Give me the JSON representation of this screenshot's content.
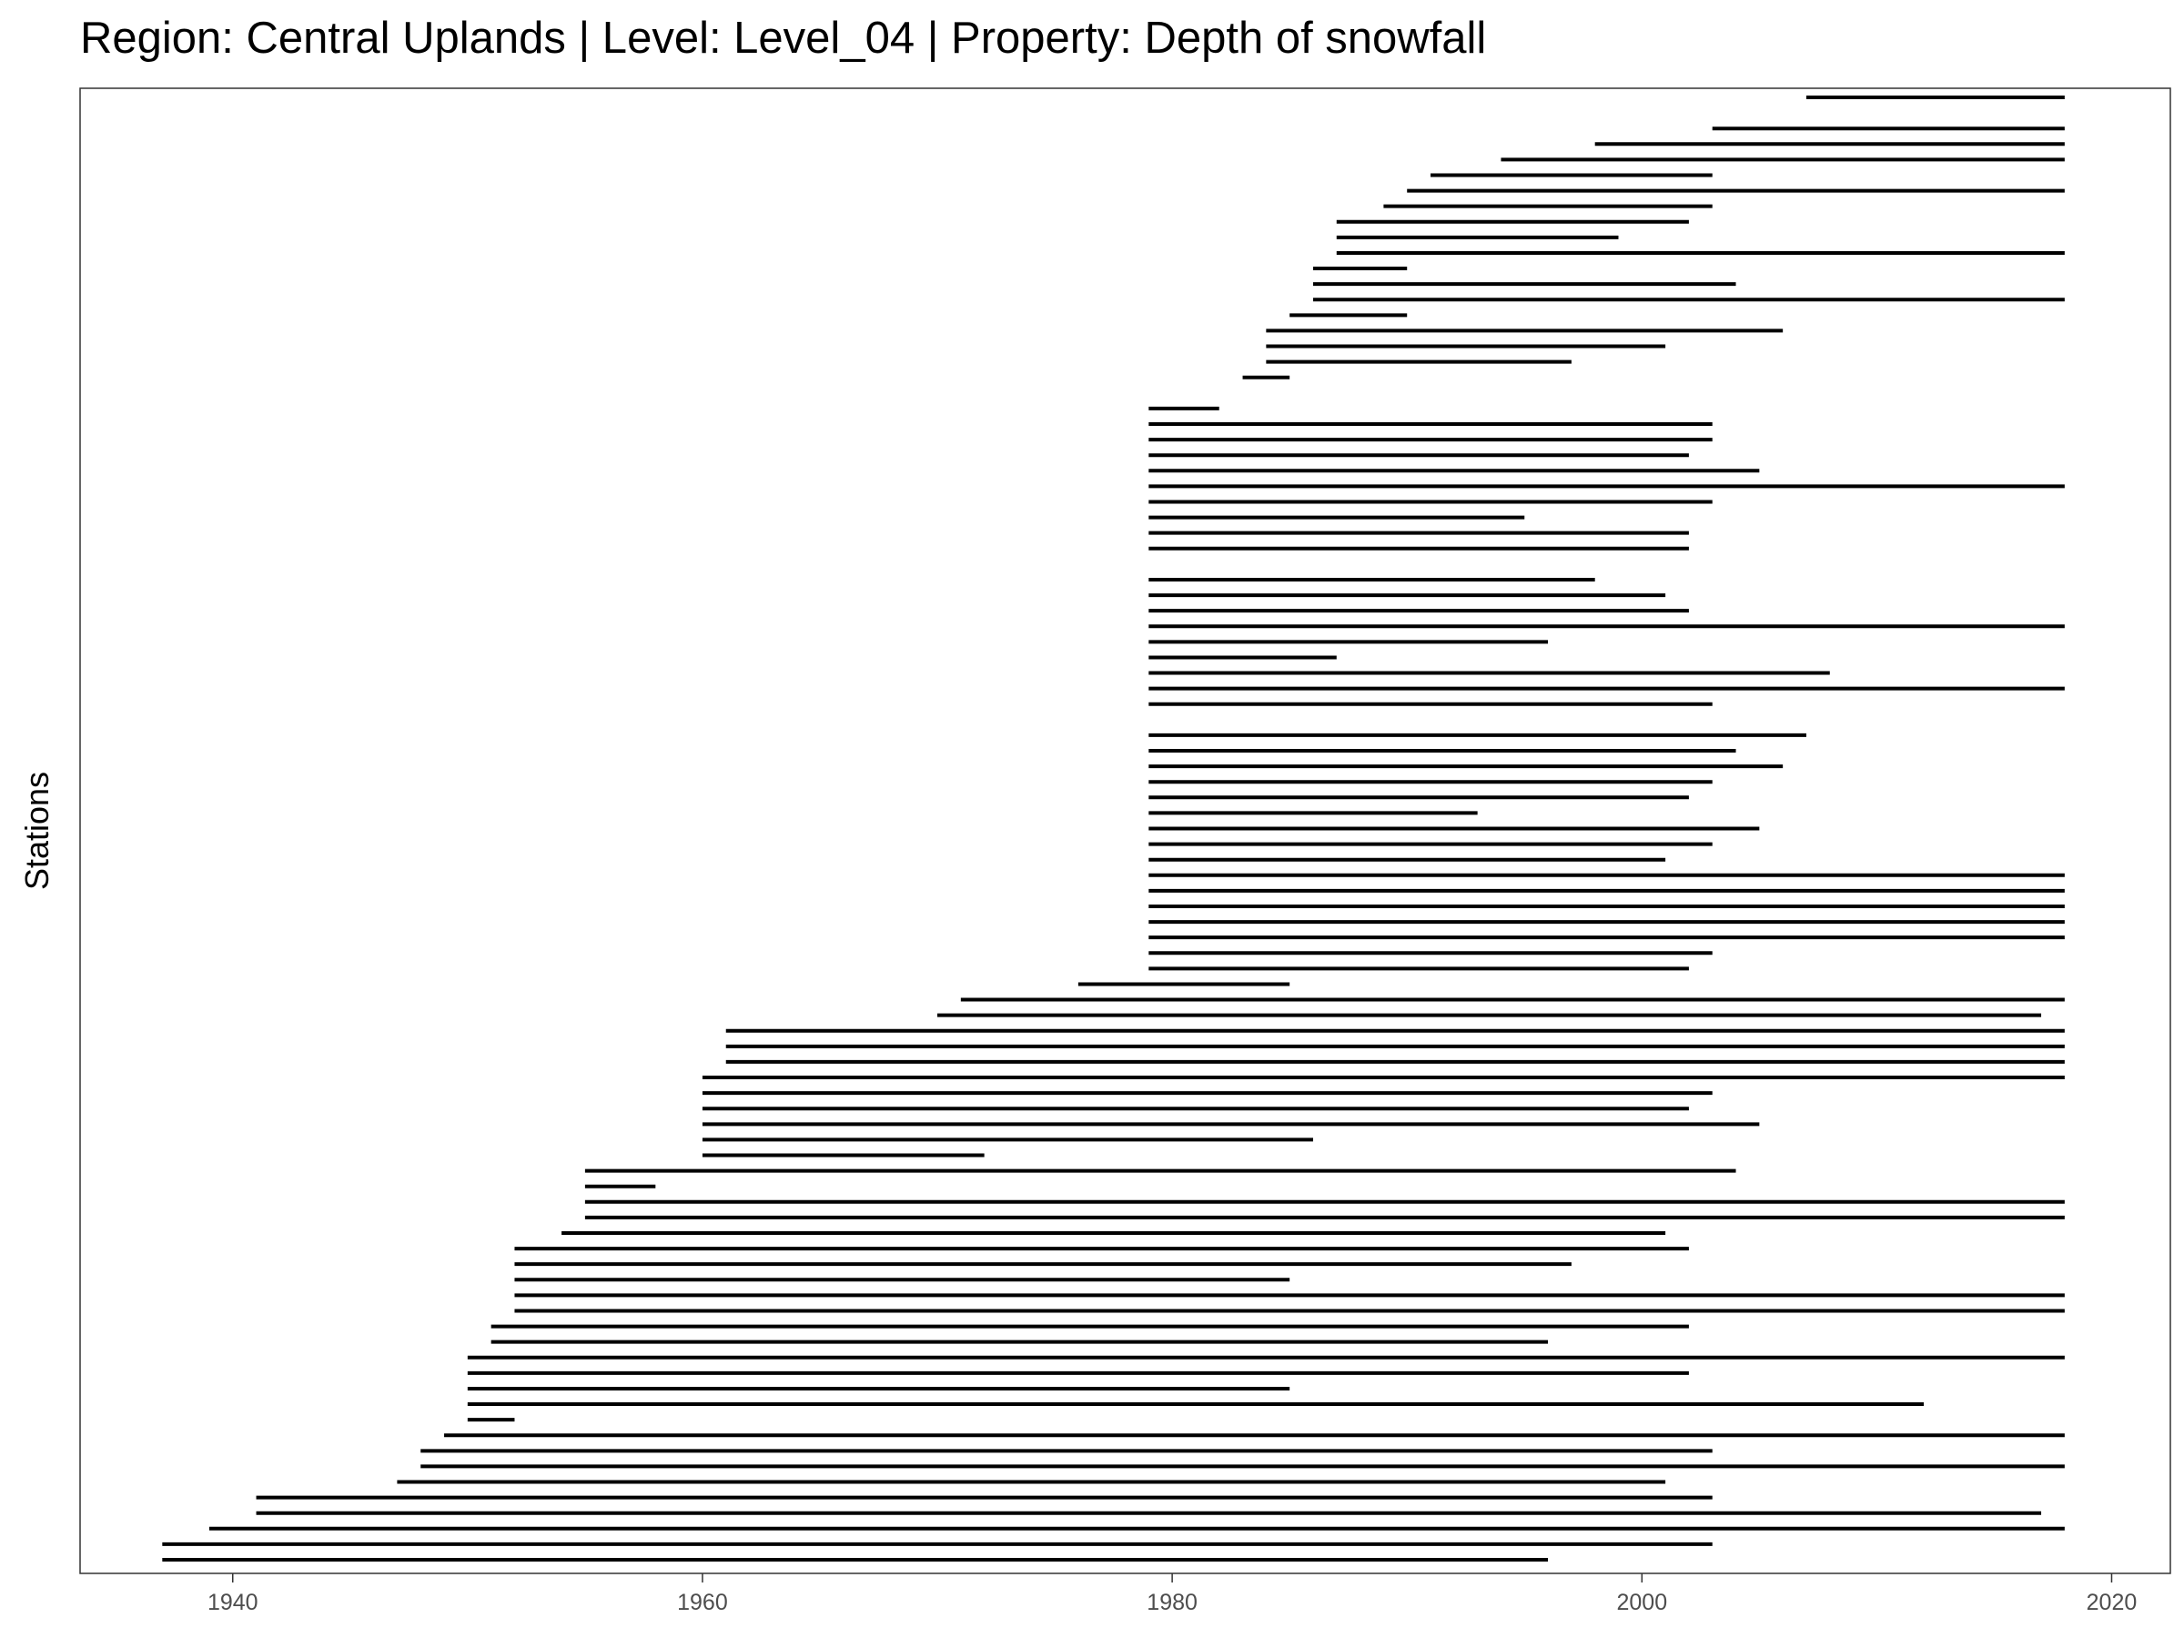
{
  "chart_data": {
    "type": "segments",
    "title": "Region: Central Uplands | Level: Level_04 | Property: Depth of snowfall",
    "xlabel": "",
    "ylabel": "Stations",
    "xlim": [
      1933.5,
      2022.5
    ],
    "x_ticks": [
      "1940",
      "1960",
      "1980",
      "2000",
      "2020"
    ],
    "x_tick_values": [
      1940,
      1960,
      1980,
      2000,
      2020
    ],
    "grid": false,
    "legend": "none",
    "line_color": "#000000",
    "segments": [
      [
        1937,
        1996
      ],
      [
        1937,
        2003
      ],
      [
        1939,
        2018
      ],
      [
        1941,
        2017
      ],
      [
        1941,
        2003
      ],
      [
        1947,
        2001
      ],
      [
        1948,
        2018
      ],
      [
        1948,
        2003
      ],
      [
        1949,
        2018
      ],
      [
        1950,
        1952
      ],
      [
        1950,
        2012
      ],
      [
        1950,
        1985
      ],
      [
        1950,
        2002
      ],
      [
        1950,
        2018
      ],
      [
        1951,
        1996
      ],
      [
        1951,
        2002
      ],
      [
        1952,
        2018
      ],
      [
        1952,
        2018
      ],
      [
        1952,
        1985
      ],
      [
        1952,
        1997
      ],
      [
        1952,
        2002
      ],
      [
        1954,
        2001
      ],
      [
        1955,
        2018
      ],
      [
        1955,
        2018
      ],
      [
        1955,
        1958
      ],
      [
        1955,
        2004
      ],
      [
        1960,
        1972
      ],
      [
        1960,
        1986
      ],
      [
        1960,
        2005
      ],
      [
        1960,
        2002
      ],
      [
        1960,
        2003
      ],
      [
        1960,
        2018
      ],
      [
        1961,
        2018
      ],
      [
        1961,
        2018
      ],
      [
        1961,
        2018
      ],
      [
        1970,
        2017
      ],
      [
        1971,
        2018
      ],
      [
        1976,
        1985
      ],
      [
        1979,
        2002
      ],
      [
        1979,
        2003
      ],
      [
        1979,
        2018
      ],
      [
        1979,
        2018
      ],
      [
        1979,
        2018
      ],
      [
        1979,
        2018
      ],
      [
        1979,
        2018
      ],
      [
        1979,
        2001
      ],
      [
        1979,
        2003
      ],
      [
        1979,
        2005
      ],
      [
        1979,
        1993
      ],
      [
        1979,
        2002
      ],
      [
        1979,
        2003
      ],
      [
        1979,
        2006
      ],
      [
        1979,
        2004
      ],
      [
        1979,
        2007
      ],
      [
        null,
        null
      ],
      [
        1979,
        2003
      ],
      [
        1979,
        2018
      ],
      [
        1979,
        2008
      ],
      [
        1979,
        1987
      ],
      [
        1979,
        1996
      ],
      [
        1979,
        2018
      ],
      [
        1979,
        2002
      ],
      [
        1979,
        2001
      ],
      [
        1979,
        1998
      ],
      [
        null,
        null
      ],
      [
        1979,
        2002
      ],
      [
        1979,
        2002
      ],
      [
        1979,
        1995
      ],
      [
        1979,
        2003
      ],
      [
        1979,
        2018
      ],
      [
        1979,
        2005
      ],
      [
        1979,
        2002
      ],
      [
        1979,
        2003
      ],
      [
        1979,
        2003
      ],
      [
        1979,
        1982
      ],
      [
        null,
        null
      ],
      [
        1983,
        1985
      ],
      [
        1984,
        1997
      ],
      [
        1984,
        2001
      ],
      [
        1984,
        2006
      ],
      [
        1985,
        1990
      ],
      [
        1986,
        2018
      ],
      [
        1986,
        2004
      ],
      [
        1986,
        1990
      ],
      [
        1987,
        2018
      ],
      [
        1987,
        1999
      ],
      [
        1987,
        2002
      ],
      [
        1989,
        2003
      ],
      [
        1990,
        2018
      ],
      [
        1991,
        2003
      ],
      [
        1994,
        2018
      ],
      [
        1998,
        2018
      ],
      [
        2003,
        2018
      ],
      [
        null,
        null
      ],
      [
        2007,
        2018
      ]
    ]
  }
}
